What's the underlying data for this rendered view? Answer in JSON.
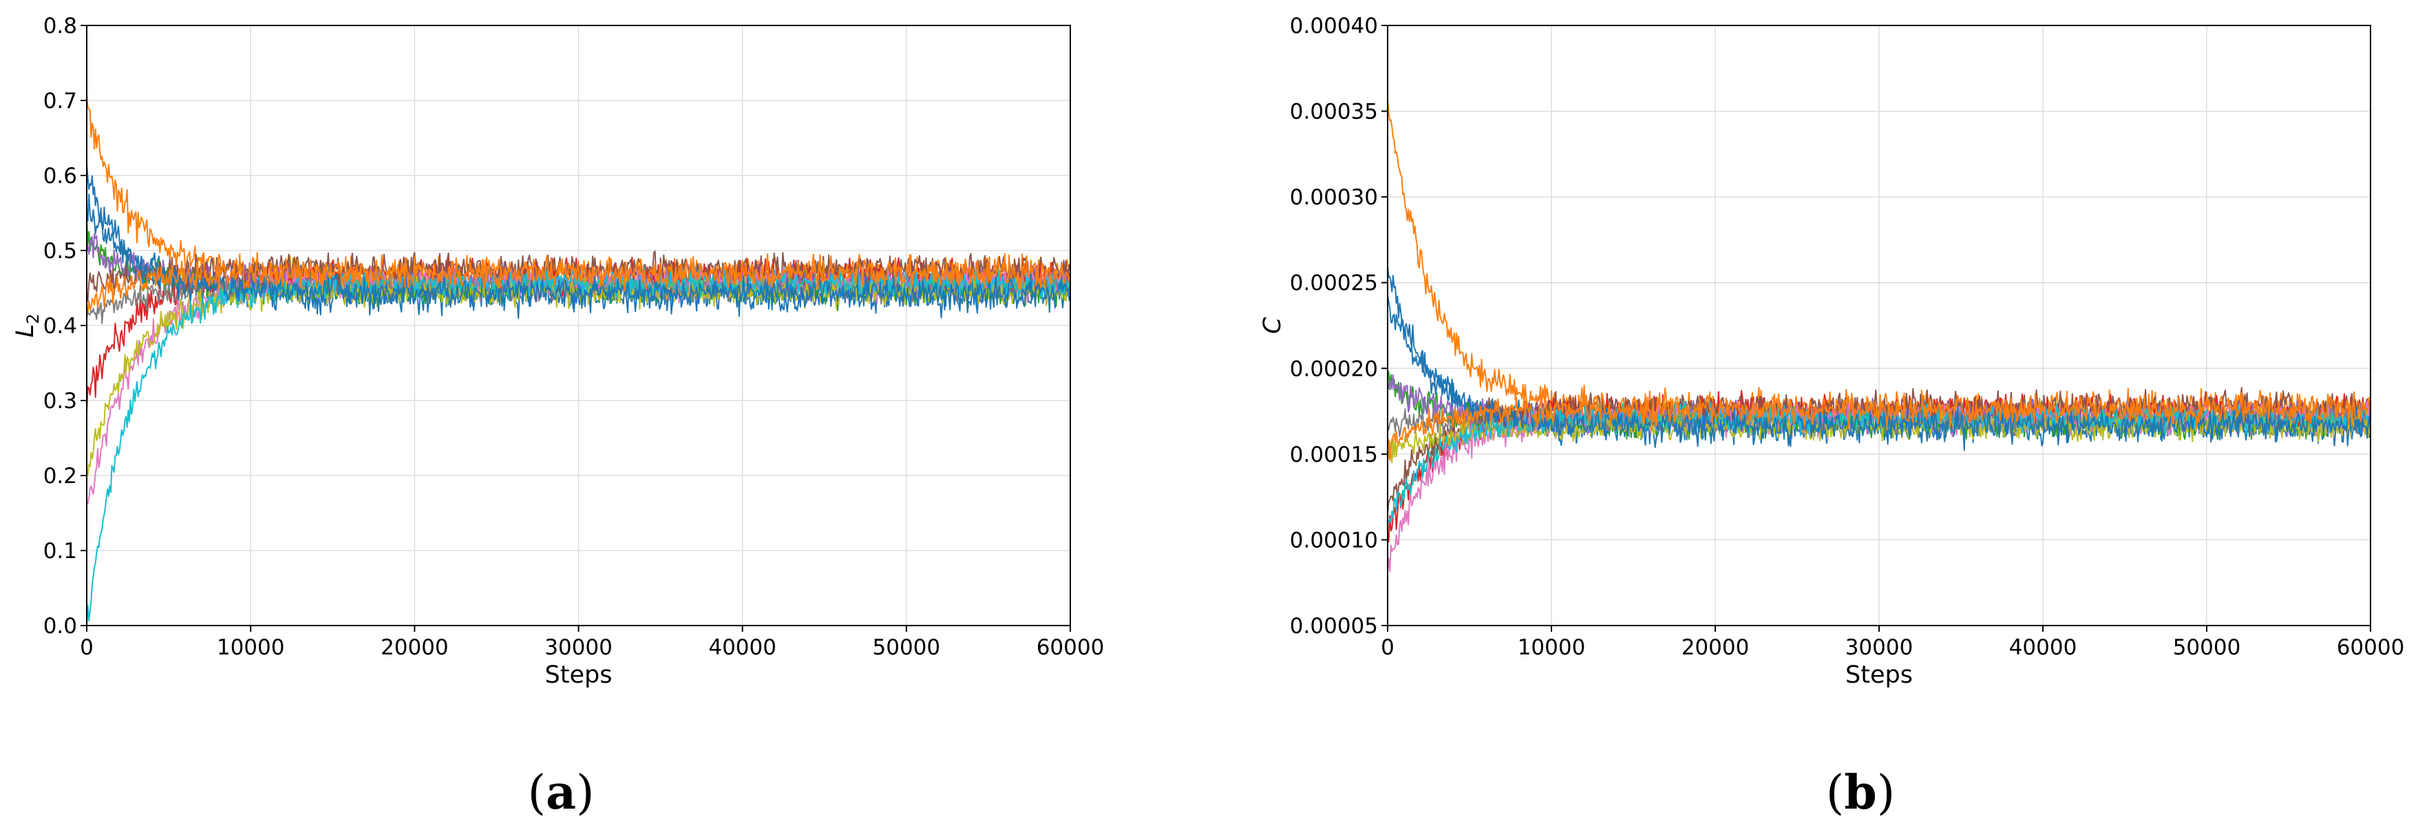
{
  "chart_data": [
    {
      "type": "line",
      "panel_label": "(a)",
      "panel_letter": "a",
      "xlabel": "Steps",
      "ylabel": "L",
      "ylabel_sub": "2",
      "xlim": [
        0,
        60000
      ],
      "ylim": [
        0.0,
        0.8
      ],
      "xticks": [
        "0",
        "10000",
        "20000",
        "30000",
        "40000",
        "50000",
        "60000"
      ],
      "yticks": [
        "0.0",
        "0.1",
        "0.2",
        "0.3",
        "0.4",
        "0.5",
        "0.6",
        "0.7",
        "0.8"
      ],
      "grid": true,
      "legend": false,
      "series_colors": [
        "#1f77b4",
        "#ff7f0e",
        "#2ca02c",
        "#d62728",
        "#9467bd",
        "#8c564b",
        "#e377c2",
        "#7f7f7f",
        "#bcbd22",
        "#17becf"
      ],
      "series": [
        {
          "start": 0.6,
          "steady": 0.44,
          "noise": 0.014
        },
        {
          "start": 0.69,
          "steady": 0.47,
          "noise": 0.013
        },
        {
          "start": 0.52,
          "steady": 0.45,
          "noise": 0.012
        },
        {
          "start": 0.3,
          "steady": 0.465,
          "noise": 0.013
        },
        {
          "start": 0.51,
          "steady": 0.46,
          "noise": 0.012
        },
        {
          "start": 0.45,
          "steady": 0.475,
          "noise": 0.012
        },
        {
          "start": 0.15,
          "steady": 0.455,
          "noise": 0.012
        },
        {
          "start": 0.41,
          "steady": 0.45,
          "noise": 0.01
        },
        {
          "start": 0.2,
          "steady": 0.445,
          "noise": 0.011
        },
        {
          "start": 0.0,
          "steady": 0.455,
          "noise": 0.011
        },
        {
          "start": 0.56,
          "steady": 0.445,
          "noise": 0.012
        },
        {
          "start": 0.43,
          "steady": 0.47,
          "noise": 0.012
        }
      ]
    },
    {
      "type": "line",
      "panel_label": "(b)",
      "panel_letter": "b",
      "xlabel": "Steps",
      "ylabel": "C",
      "ylabel_sub": "",
      "xlim": [
        0,
        60000
      ],
      "ylim": [
        5e-05,
        0.0004
      ],
      "xticks": [
        "0",
        "10000",
        "20000",
        "30000",
        "40000",
        "50000",
        "60000"
      ],
      "yticks": [
        "0.00005",
        "0.00010",
        "0.00015",
        "0.00020",
        "0.00025",
        "0.00030",
        "0.00035",
        "0.00040"
      ],
      "grid": true,
      "legend": false,
      "series_colors": [
        "#1f77b4",
        "#ff7f0e",
        "#2ca02c",
        "#d62728",
        "#9467bd",
        "#8c564b",
        "#e377c2",
        "#7f7f7f",
        "#bcbd22",
        "#17becf"
      ],
      "series": [
        {
          "start": 0.000255,
          "steady": 0.000165,
          "noise": 5.5e-06
        },
        {
          "start": 0.00036,
          "steady": 0.000177,
          "noise": 5.5e-06
        },
        {
          "start": 0.000195,
          "steady": 0.000168,
          "noise": 5e-06
        },
        {
          "start": 0.0001,
          "steady": 0.000175,
          "noise": 5.5e-06
        },
        {
          "start": 0.00019,
          "steady": 0.000172,
          "noise": 5e-06
        },
        {
          "start": 0.00012,
          "steady": 0.000178,
          "noise": 5e-06
        },
        {
          "start": 8.5e-05,
          "steady": 0.00017,
          "noise": 5e-06
        },
        {
          "start": 0.000168,
          "steady": 0.000169,
          "noise": 4.5e-06
        },
        {
          "start": 0.00015,
          "steady": 0.000166,
          "noise": 4.5e-06
        },
        {
          "start": 0.00011,
          "steady": 0.000171,
          "noise": 4.5e-06
        },
        {
          "start": 0.00024,
          "steady": 0.000167,
          "noise": 5e-06
        },
        {
          "start": 0.000155,
          "steady": 0.000176,
          "noise": 5e-06
        }
      ]
    }
  ]
}
